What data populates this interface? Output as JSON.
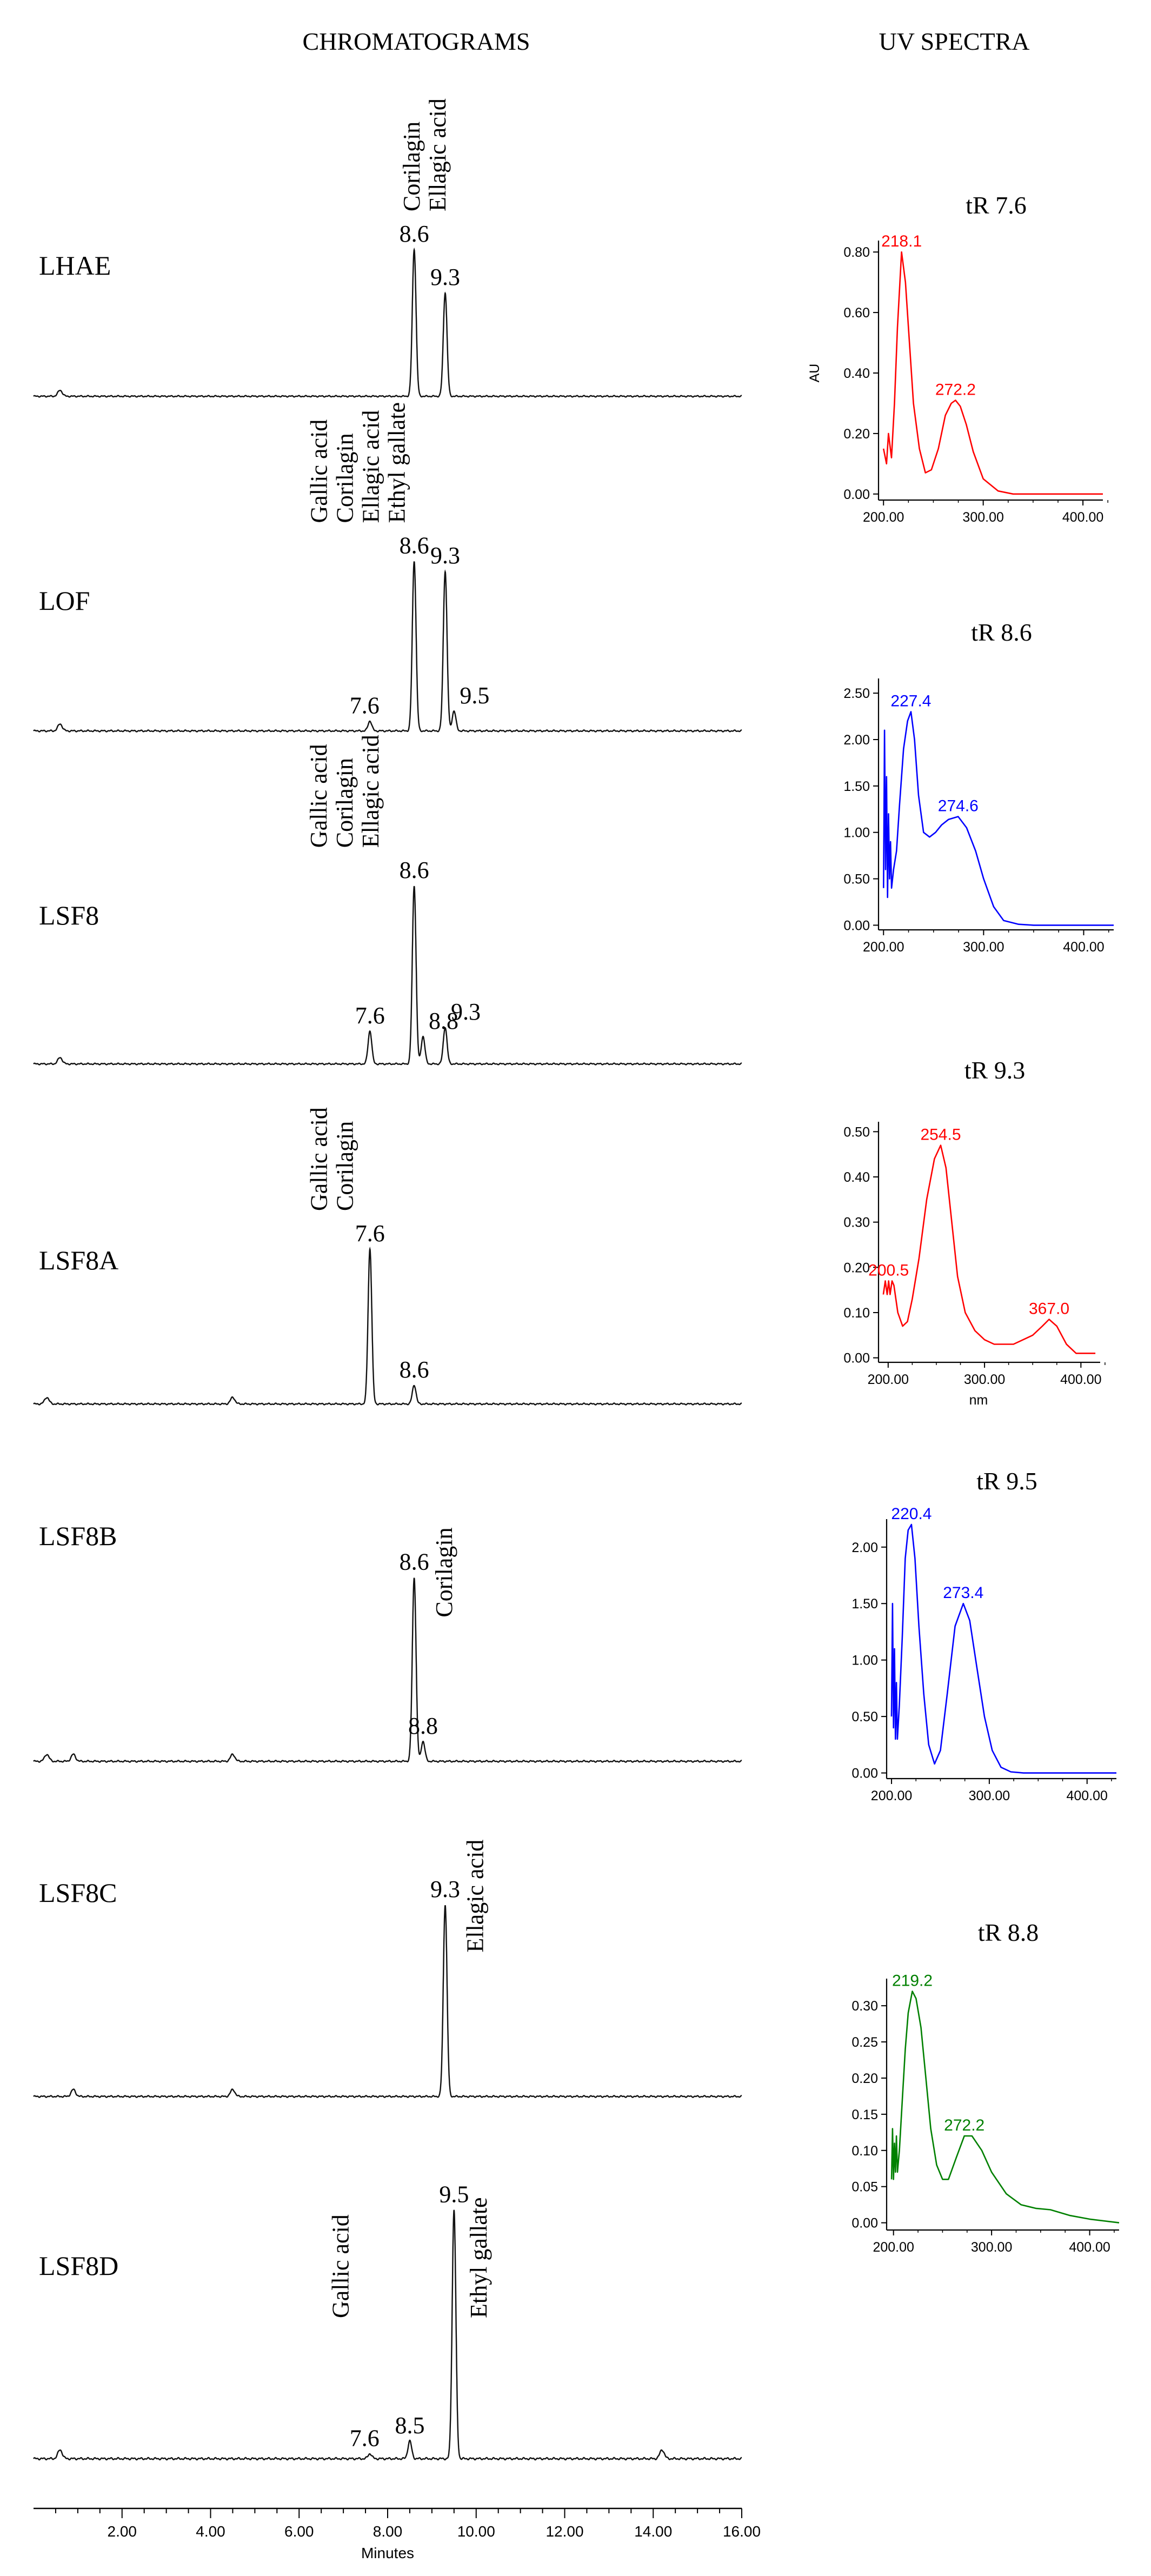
{
  "figure": {
    "left_heading": "CHROMATOGRAMS",
    "right_heading": "UV SPECTRA"
  },
  "chart_data": [
    {
      "type": "line",
      "group": "chromatograms",
      "x_axis": {
        "range": [
          0,
          16
        ],
        "ticks": [
          2,
          4,
          6,
          8,
          10,
          12,
          14,
          16
        ],
        "tick_labels": [
          "2.00",
          "4.00",
          "6.00",
          "8.00",
          "10.00",
          "12.00",
          "14.00",
          "16.00"
        ],
        "label": "Minutes"
      },
      "traces": [
        {
          "name": "LHAE",
          "noise_bumps": [
            0.6
          ],
          "peaks": [
            {
              "rt": 8.6,
              "height": 0.85,
              "label": "8.6",
              "compound": "Corilagin"
            },
            {
              "rt": 9.3,
              "height": 0.6,
              "label": "9.3",
              "compound": "Ellagic acid"
            }
          ]
        },
        {
          "name": "LOF",
          "noise_bumps": [
            0.6
          ],
          "peaks": [
            {
              "rt": 7.6,
              "height": 0.05,
              "label": "7.6",
              "compound": "Gallic acid"
            },
            {
              "rt": 8.6,
              "height": 0.85,
              "label": "8.6",
              "compound": "Corilagin"
            },
            {
              "rt": 9.3,
              "height": 0.8,
              "label": "9.3",
              "compound": "Ellagic acid"
            },
            {
              "rt": 9.5,
              "height": 0.1,
              "label": "9.5",
              "compound": "Ethyl gallate"
            }
          ]
        },
        {
          "name": "LSF8",
          "noise_bumps": [
            0.6
          ],
          "peaks": [
            {
              "rt": 7.6,
              "height": 0.18,
              "label": "7.6",
              "compound": "Gallic acid"
            },
            {
              "rt": 8.6,
              "height": 0.97,
              "label": "8.6",
              "compound": "Corilagin"
            },
            {
              "rt": 8.8,
              "height": 0.15,
              "label": "8.8",
              "compound": ""
            },
            {
              "rt": 9.3,
              "height": 0.2,
              "label": "9.3",
              "compound": "Ellagic acid"
            }
          ]
        },
        {
          "name": "LSF8A",
          "noise_bumps": [
            0.3,
            4.5
          ],
          "peaks": [
            {
              "rt": 7.6,
              "height": 0.82,
              "label": "7.6",
              "compound": "Gallic acid"
            },
            {
              "rt": 8.6,
              "height": 0.1,
              "label": "8.6",
              "compound": "Corilagin"
            }
          ]
        },
        {
          "name": "LSF8B",
          "noise_bumps": [
            0.3,
            0.9,
            4.5
          ],
          "peaks": [
            {
              "rt": 8.6,
              "height": 0.92,
              "label": "8.6",
              "compound": "Corilagin"
            },
            {
              "rt": 8.8,
              "height": 0.1,
              "label": "8.8",
              "compound": ""
            }
          ]
        },
        {
          "name": "LSF8C",
          "noise_bumps": [
            0.9,
            4.5
          ],
          "peaks": [
            {
              "rt": 9.3,
              "height": 0.96,
              "label": "9.3",
              "compound": "Ellagic acid"
            }
          ]
        },
        {
          "name": "LSF8D",
          "noise_bumps": [
            0.6,
            14.2
          ],
          "peaks": [
            {
              "rt": 7.6,
              "height": 0.02,
              "label": "7.6",
              "compound": "Gallic acid"
            },
            {
              "rt": 8.5,
              "height": 0.07,
              "label": "8.5",
              "compound": ""
            },
            {
              "rt": 9.5,
              "height": 0.98,
              "label": "9.5",
              "compound": "Ethyl gallate"
            }
          ]
        }
      ]
    },
    {
      "type": "line",
      "group": "uv_spectra",
      "title": "tR 7.6",
      "color": "#ff0000",
      "xlim": [
        195,
        420
      ],
      "x_ticks": [
        200,
        300,
        400
      ],
      "x_tick_labels": [
        "200.00",
        "300.00",
        "400.00"
      ],
      "xlabel": "",
      "ylim": [
        -0.02,
        0.82
      ],
      "y_ticks": [
        0,
        0.2,
        0.4,
        0.6,
        0.8
      ],
      "y_tick_labels": [
        "0.00",
        "0.20",
        "0.40",
        "0.60",
        "0.80"
      ],
      "ylabel": "AU",
      "x": [
        200,
        203,
        205,
        208,
        211,
        214,
        218.1,
        222,
        226,
        230,
        236,
        242,
        248,
        255,
        262,
        268,
        272.2,
        277,
        283,
        290,
        300,
        315,
        330,
        350,
        380,
        420
      ],
      "y": [
        0.15,
        0.1,
        0.2,
        0.12,
        0.3,
        0.55,
        0.8,
        0.7,
        0.5,
        0.3,
        0.15,
        0.07,
        0.08,
        0.15,
        0.26,
        0.3,
        0.31,
        0.29,
        0.23,
        0.14,
        0.05,
        0.01,
        0.0,
        0.0,
        0.0,
        0.0
      ],
      "peak_labels": [
        {
          "x": 218.1,
          "y": 0.8,
          "text": "218.1"
        },
        {
          "x": 272.2,
          "y": 0.31,
          "text": "272.2"
        }
      ]
    },
    {
      "type": "line",
      "group": "uv_spectra",
      "title": "tR 8.6",
      "color": "#0000ff",
      "xlim": [
        195,
        430
      ],
      "x_ticks": [
        200,
        300,
        400
      ],
      "x_tick_labels": [
        "200.00",
        "300.00",
        "400.00"
      ],
      "xlabel": "",
      "ylim": [
        -0.05,
        2.6
      ],
      "y_ticks": [
        0,
        0.5,
        1.0,
        1.5,
        2.0,
        2.5
      ],
      "y_tick_labels": [
        "0.00",
        "0.50",
        "1.00",
        "1.50",
        "2.00",
        "2.50"
      ],
      "ylabel": "",
      "x": [
        200,
        201,
        202,
        203,
        204,
        205,
        206,
        207,
        208,
        210,
        213,
        216,
        220,
        224,
        227.4,
        231,
        235,
        240,
        246,
        252,
        258,
        265,
        274.6,
        283,
        292,
        300,
        310,
        320,
        335,
        350,
        380,
        430
      ],
      "y": [
        0.4,
        2.1,
        0.6,
        1.6,
        0.3,
        1.2,
        0.5,
        0.9,
        0.4,
        0.6,
        0.8,
        1.3,
        1.9,
        2.2,
        2.3,
        2.0,
        1.4,
        1.0,
        0.95,
        1.0,
        1.08,
        1.14,
        1.17,
        1.05,
        0.8,
        0.5,
        0.2,
        0.05,
        0.01,
        0.0,
        0.0,
        0.0
      ],
      "peak_labels": [
        {
          "x": 227.4,
          "y": 2.3,
          "text": "227.4"
        },
        {
          "x": 274.6,
          "y": 1.17,
          "text": "274.6"
        }
      ]
    },
    {
      "type": "line",
      "group": "uv_spectra",
      "title": "tR 9.3",
      "color": "#ff0000",
      "xlim": [
        190,
        420
      ],
      "x_ticks": [
        200,
        300,
        400
      ],
      "x_tick_labels": [
        "200.00",
        "300.00",
        "400.00"
      ],
      "xlabel": "nm",
      "ylim": [
        -0.01,
        0.51
      ],
      "y_ticks": [
        0,
        0.1,
        0.2,
        0.3,
        0.4,
        0.5
      ],
      "y_tick_labels": [
        "0.00",
        "0.10",
        "0.20",
        "0.30",
        "0.40",
        "0.50"
      ],
      "ylabel": "",
      "x": [
        195,
        197,
        199,
        200.5,
        202,
        204,
        206,
        210,
        215,
        220,
        225,
        232,
        240,
        248,
        254.5,
        260,
        266,
        272,
        280,
        290,
        300,
        310,
        320,
        330,
        340,
        350,
        360,
        367,
        375,
        385,
        395,
        405,
        415
      ],
      "y": [
        0.14,
        0.17,
        0.14,
        0.17,
        0.14,
        0.17,
        0.16,
        0.1,
        0.07,
        0.08,
        0.13,
        0.22,
        0.35,
        0.44,
        0.47,
        0.42,
        0.3,
        0.18,
        0.1,
        0.06,
        0.04,
        0.03,
        0.03,
        0.03,
        0.04,
        0.05,
        0.07,
        0.085,
        0.07,
        0.03,
        0.01,
        0.01,
        0.01
      ],
      "peak_labels": [
        {
          "x": 200.5,
          "y": 0.17,
          "text": "200.5"
        },
        {
          "x": 254.5,
          "y": 0.47,
          "text": "254.5"
        },
        {
          "x": 367.0,
          "y": 0.085,
          "text": "367.0"
        }
      ]
    },
    {
      "type": "line",
      "group": "uv_spectra",
      "title": "tR 9.5",
      "color": "#0000ff",
      "xlim": [
        195,
        430
      ],
      "x_ticks": [
        200,
        300,
        400
      ],
      "x_tick_labels": [
        "200.00",
        "300.00",
        "400.00"
      ],
      "xlabel": "",
      "ylim": [
        -0.05,
        2.2
      ],
      "y_ticks": [
        0,
        0.5,
        1.0,
        1.5,
        2.0
      ],
      "y_tick_labels": [
        "0.00",
        "0.50",
        "1.00",
        "1.50",
        "2.00"
      ],
      "ylabel": "",
      "x": [
        200,
        201,
        202,
        203,
        204,
        205,
        206,
        208,
        211,
        214,
        217,
        220.4,
        224,
        228,
        233,
        238,
        244,
        250,
        257,
        265,
        273.4,
        280,
        287,
        295,
        303,
        312,
        322,
        335,
        350,
        380,
        430
      ],
      "y": [
        0.5,
        1.5,
        0.4,
        1.1,
        0.3,
        0.8,
        0.3,
        0.6,
        1.2,
        1.9,
        2.15,
        2.2,
        1.9,
        1.3,
        0.7,
        0.25,
        0.08,
        0.2,
        0.7,
        1.3,
        1.5,
        1.35,
        0.95,
        0.5,
        0.2,
        0.05,
        0.01,
        0.0,
        0.0,
        0.0,
        0.0
      ],
      "peak_labels": [
        {
          "x": 220.4,
          "y": 2.2,
          "text": "220.4"
        },
        {
          "x": 273.4,
          "y": 1.5,
          "text": "273.4"
        }
      ]
    },
    {
      "type": "line",
      "group": "uv_spectra",
      "title": "tR 8.8",
      "color": "#008000",
      "xlim": [
        193,
        430
      ],
      "x_ticks": [
        200,
        300,
        400
      ],
      "x_tick_labels": [
        "200.00",
        "300.00",
        "400.00"
      ],
      "xlabel": "",
      "ylim": [
        -0.01,
        0.33
      ],
      "y_ticks": [
        0,
        0.05,
        0.1,
        0.15,
        0.2,
        0.25,
        0.3
      ],
      "y_tick_labels": [
        "0.00",
        "0.05",
        "0.10",
        "0.15",
        "0.20",
        "0.25",
        "0.30"
      ],
      "ylabel": "",
      "x": [
        198,
        199,
        200,
        201,
        202,
        203,
        204,
        206,
        209,
        212,
        215,
        219.2,
        223,
        228,
        233,
        238,
        244,
        250,
        256,
        264,
        272.2,
        280,
        290,
        300,
        315,
        330,
        345,
        360,
        380,
        400,
        430
      ],
      "y": [
        0.06,
        0.13,
        0.06,
        0.11,
        0.07,
        0.12,
        0.07,
        0.1,
        0.17,
        0.24,
        0.29,
        0.32,
        0.31,
        0.27,
        0.2,
        0.13,
        0.08,
        0.06,
        0.06,
        0.09,
        0.12,
        0.12,
        0.1,
        0.07,
        0.04,
        0.025,
        0.02,
        0.018,
        0.01,
        0.005,
        0.0
      ],
      "peak_labels": [
        {
          "x": 219.2,
          "y": 0.32,
          "text": "219.2"
        },
        {
          "x": 272.2,
          "y": 0.12,
          "text": "272.2"
        }
      ]
    }
  ]
}
